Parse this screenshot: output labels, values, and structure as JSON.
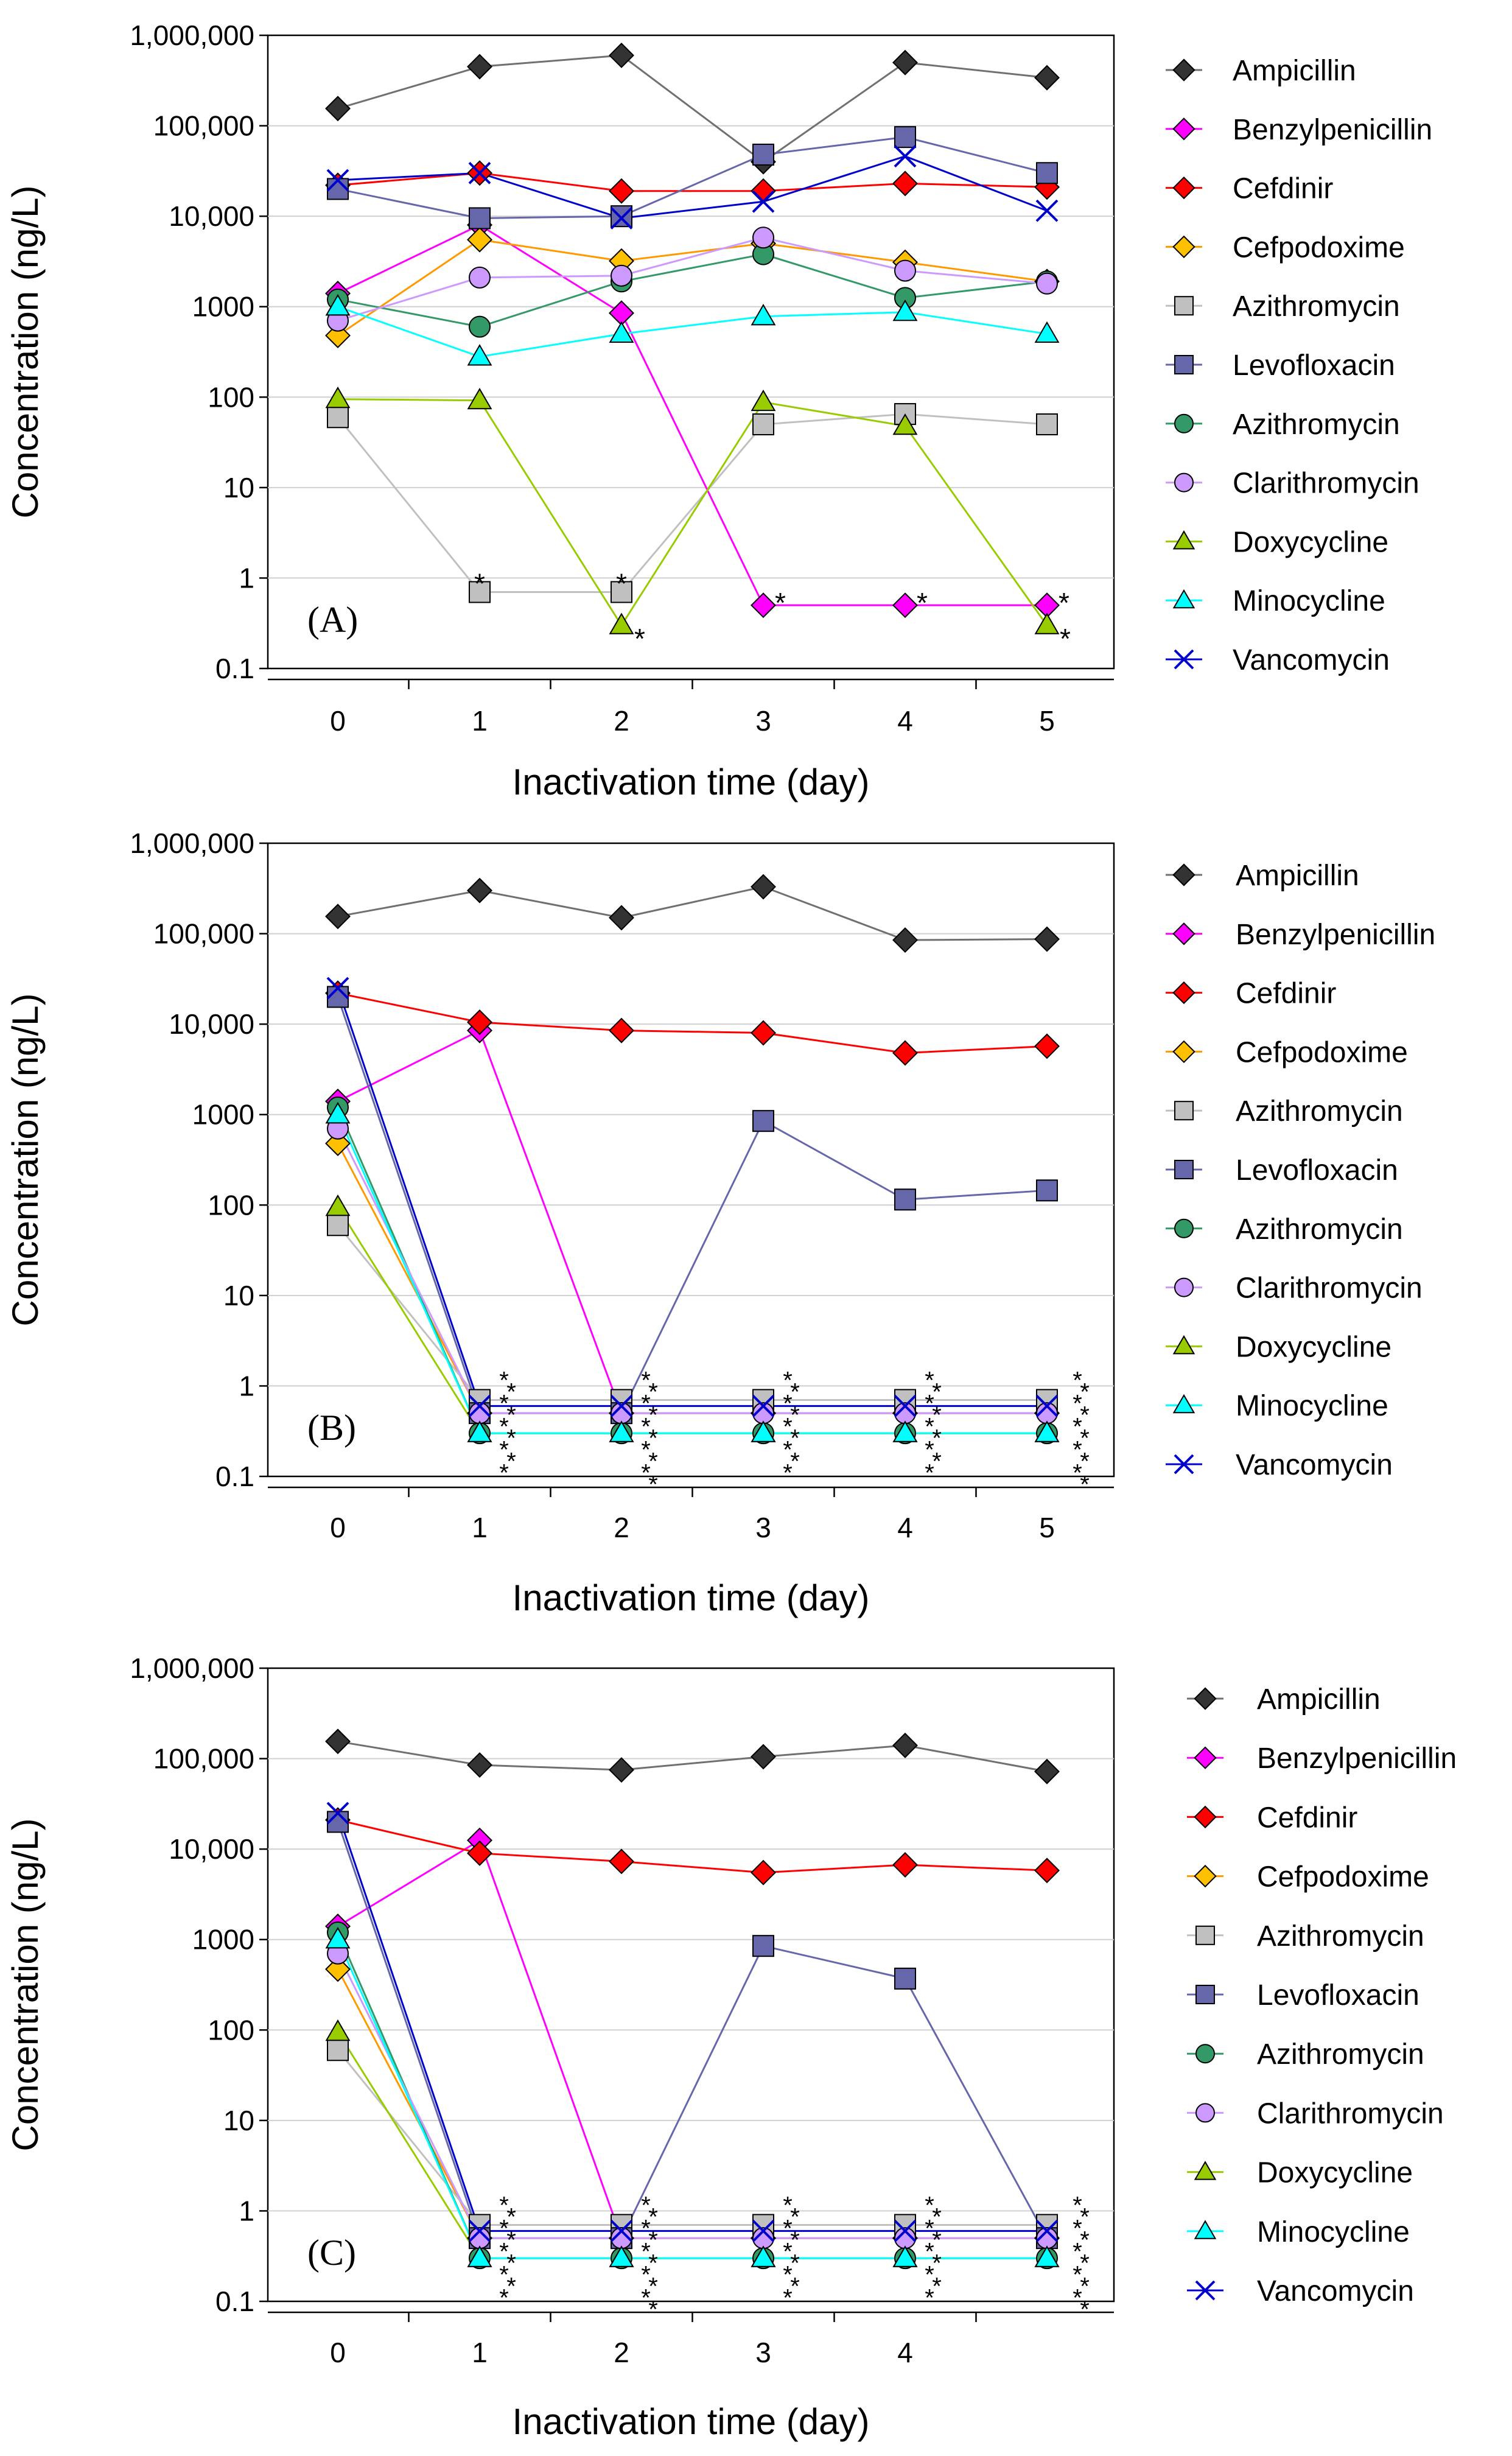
{
  "chart_data": [
    {
      "type": "line",
      "panel_label": "(A)",
      "xlabel": "Inactivation time (day)",
      "ylabel": "Concentration (ng/L)",
      "yscale": "log",
      "ylim": [
        0.1,
        1000000
      ],
      "xlim": [
        -0.5,
        5.5
      ],
      "x_ticks": [
        "0",
        "1",
        "2",
        "3",
        "4",
        "5"
      ],
      "y_ticks": [
        "0.1",
        "1",
        "10",
        "100",
        "1000",
        "10,000",
        "100,000",
        "1,000,000"
      ],
      "grid": "horizontal",
      "legend": "right",
      "series": [
        {
          "name": "Ampicillin",
          "x": [
            0,
            1,
            2,
            3,
            4,
            5
          ],
          "values": [
            155000,
            450000,
            600000,
            40000,
            500000,
            340000
          ]
        },
        {
          "name": "Benzylpenicillin",
          "x": [
            0,
            1,
            2,
            3,
            4,
            5
          ],
          "values": [
            1400,
            8000,
            850,
            0.5,
            0.5,
            0.5
          ]
        },
        {
          "name": "Cefdinir",
          "x": [
            0,
            1,
            2,
            3,
            4,
            5
          ],
          "values": [
            22000,
            30000,
            19000,
            19000,
            23000,
            21000
          ]
        },
        {
          "name": "Cefpodoxime",
          "x": [
            0,
            1,
            2,
            3,
            4,
            5
          ],
          "values": [
            480,
            5500,
            3200,
            5000,
            3100,
            1900
          ]
        },
        {
          "name": "Azithromycin",
          "x": [
            0,
            1,
            2,
            3,
            4,
            5
          ],
          "values": [
            60,
            0.7,
            0.7,
            50,
            65,
            50
          ]
        },
        {
          "name": "Levofloxacin",
          "x": [
            0,
            1,
            2,
            3,
            4,
            5
          ],
          "values": [
            20000,
            9500,
            10000,
            48000,
            75000,
            30000
          ]
        },
        {
          "name": "Azithromycin",
          "x": [
            0,
            1,
            2,
            3,
            4,
            5
          ],
          "values": [
            1200,
            600,
            1900,
            3800,
            1250,
            1900
          ]
        },
        {
          "name": "Clarithromycin",
          "x": [
            0,
            1,
            2,
            3,
            4,
            5
          ],
          "values": [
            700,
            2100,
            2200,
            5800,
            2500,
            1800
          ]
        },
        {
          "name": "Doxycycline",
          "x": [
            0,
            1,
            2,
            3,
            4,
            5
          ],
          "values": [
            95,
            92,
            0.3,
            88,
            48,
            0.3
          ]
        },
        {
          "name": "Minocycline",
          "x": [
            0,
            1,
            2,
            3,
            4,
            5
          ],
          "values": [
            1000,
            280,
            500,
            780,
            870,
            500
          ]
        },
        {
          "name": "Vancomycin",
          "x": [
            0,
            1,
            2,
            3,
            4,
            5
          ],
          "values": [
            25000,
            30000,
            9500,
            14500,
            46000,
            11500
          ]
        }
      ],
      "annotations": [
        {
          "text": "*",
          "x": 1,
          "y": 0.7
        },
        {
          "text": "*",
          "x": 2,
          "y": 0.7
        },
        {
          "text": "*",
          "x": 2,
          "y": 0.3
        },
        {
          "text": "*",
          "x": 3,
          "y": 0.5
        },
        {
          "text": "*",
          "x": 4,
          "y": 0.5
        },
        {
          "text": "*",
          "x": 5,
          "y": 0.5
        },
        {
          "text": "*",
          "x": 5,
          "y": 0.3
        }
      ],
      "star_columns": []
    },
    {
      "type": "line",
      "panel_label": "(B)",
      "xlabel": "Inactivation time (day)",
      "ylabel": "Concentration (ng/L)",
      "yscale": "log",
      "ylim": [
        0.1,
        1000000
      ],
      "xlim": [
        -0.5,
        5.5
      ],
      "x_ticks": [
        "0",
        "1",
        "2",
        "3",
        "4",
        "5"
      ],
      "y_ticks": [
        "0.1",
        "1",
        "10",
        "100",
        "1000",
        "10,000",
        "100,000",
        "1,000,000"
      ],
      "grid": "horizontal",
      "legend": "right",
      "series": [
        {
          "name": "Ampicillin",
          "x": [
            0,
            1,
            2,
            3,
            4,
            5
          ],
          "values": [
            155000,
            300000,
            150000,
            330000,
            85000,
            87000
          ]
        },
        {
          "name": "Benzylpenicillin",
          "x": [
            0,
            1,
            2,
            3,
            4,
            5
          ],
          "values": [
            1400,
            8500,
            0.5,
            0.5,
            0.5,
            0.5
          ]
        },
        {
          "name": "Cefdinir",
          "x": [
            0,
            1,
            2,
            3,
            4,
            5
          ],
          "values": [
            22000,
            10500,
            8500,
            8000,
            4800,
            5700
          ]
        },
        {
          "name": "Cefpodoxime",
          "x": [
            0,
            1,
            2,
            3,
            4,
            5
          ],
          "values": [
            480,
            0.5,
            0.5,
            0.5,
            0.5,
            0.5
          ]
        },
        {
          "name": "Azithromycin",
          "x": [
            0,
            1,
            2,
            3,
            4,
            5
          ],
          "values": [
            60,
            0.7,
            0.7,
            0.7,
            0.7,
            0.7
          ]
        },
        {
          "name": "Levofloxacin",
          "x": [
            0,
            1,
            2,
            3,
            4,
            5
          ],
          "values": [
            20000,
            0.5,
            0.5,
            850,
            115,
            145
          ]
        },
        {
          "name": "Azithromycin",
          "x": [
            0,
            1,
            2,
            3,
            4,
            5
          ],
          "values": [
            1200,
            0.3,
            0.3,
            0.3,
            0.3,
            0.3
          ]
        },
        {
          "name": "Clarithromycin",
          "x": [
            0,
            1,
            2,
            3,
            4,
            5
          ],
          "values": [
            700,
            0.5,
            0.5,
            0.5,
            0.5,
            0.5
          ]
        },
        {
          "name": "Doxycycline",
          "x": [
            0,
            1,
            2,
            3,
            4,
            5
          ],
          "values": [
            95,
            0.3,
            0.3,
            0.3,
            0.3,
            0.3
          ]
        },
        {
          "name": "Minocycline",
          "x": [
            0,
            1,
            2,
            3,
            4,
            5
          ],
          "values": [
            1000,
            0.3,
            0.3,
            0.3,
            0.3,
            0.3
          ]
        },
        {
          "name": "Vancomycin",
          "x": [
            0,
            1,
            2,
            3,
            4,
            5
          ],
          "values": [
            25000,
            0.6,
            0.6,
            0.6,
            0.6,
            0.6
          ]
        }
      ],
      "annotations": [],
      "star_columns": [
        {
          "x": 1,
          "text": "*",
          "count": 9
        },
        {
          "x": 2,
          "text": "*",
          "count": 10
        },
        {
          "x": 3,
          "text": "*",
          "count": 9
        },
        {
          "x": 4,
          "text": "*",
          "count": 9
        },
        {
          "x": 5,
          "text": "*",
          "count": 10
        }
      ]
    },
    {
      "type": "line",
      "panel_label": "(C)",
      "xlabel": "Inactivation time (day)",
      "ylabel": "Concentration (ng/L)",
      "yscale": "log",
      "ylim": [
        0.1,
        1000000
      ],
      "xlim": [
        -0.5,
        5.5
      ],
      "x_ticks": [
        "0",
        "1",
        "2",
        "3",
        "4",
        ""
      ],
      "y_ticks": [
        "0.1",
        "1",
        "10",
        "100",
        "1000",
        "10,000",
        "100,000",
        "1,000,000"
      ],
      "grid": "horizontal",
      "legend": "right",
      "series": [
        {
          "name": "Ampicillin",
          "x": [
            0,
            1,
            2,
            3,
            4,
            5
          ],
          "values": [
            155000,
            85000,
            75000,
            105000,
            140000,
            72000
          ]
        },
        {
          "name": "Benzylpenicillin",
          "x": [
            0,
            1,
            2,
            3,
            4,
            5
          ],
          "values": [
            1400,
            12500,
            0.5,
            0.5,
            0.5,
            0.5
          ]
        },
        {
          "name": "Cefdinir",
          "x": [
            0,
            1,
            2,
            3,
            4,
            5
          ],
          "values": [
            21000,
            9000,
            7300,
            5500,
            6700,
            5800
          ]
        },
        {
          "name": "Cefpodoxime",
          "x": [
            0,
            1,
            2,
            3,
            4,
            5
          ],
          "values": [
            470,
            0.5,
            0.5,
            0.5,
            0.5,
            0.5
          ]
        },
        {
          "name": "Azithromycin",
          "x": [
            0,
            1,
            2,
            3,
            4,
            5
          ],
          "values": [
            60,
            0.7,
            0.7,
            0.7,
            0.7,
            0.7
          ]
        },
        {
          "name": "Levofloxacin",
          "x": [
            0,
            1,
            2,
            3,
            4,
            5
          ],
          "values": [
            20000,
            0.5,
            0.5,
            850,
            370,
            0.5
          ]
        },
        {
          "name": "Azithromycin",
          "x": [
            0,
            1,
            2,
            3,
            4,
            5
          ],
          "values": [
            1200,
            0.3,
            0.3,
            0.3,
            0.3,
            0.3
          ]
        },
        {
          "name": "Clarithromycin",
          "x": [
            0,
            1,
            2,
            3,
            4,
            5
          ],
          "values": [
            700,
            0.5,
            0.5,
            0.5,
            0.5,
            0.5
          ]
        },
        {
          "name": "Doxycycline",
          "x": [
            0,
            1,
            2,
            3,
            4,
            5
          ],
          "values": [
            95,
            0.3,
            0.3,
            0.3,
            0.3,
            0.3
          ]
        },
        {
          "name": "Minocycline",
          "x": [
            0,
            1,
            2,
            3,
            4,
            5
          ],
          "values": [
            1000,
            0.3,
            0.3,
            0.3,
            0.3,
            0.3
          ]
        },
        {
          "name": "Vancomycin",
          "x": [
            0,
            1,
            2,
            3,
            4,
            5
          ],
          "values": [
            25000,
            0.6,
            0.6,
            0.6,
            0.6,
            0.6
          ]
        }
      ],
      "annotations": [],
      "star_columns": [
        {
          "x": 1,
          "text": "*",
          "count": 9
        },
        {
          "x": 2,
          "text": "*",
          "count": 10
        },
        {
          "x": 3,
          "text": "*",
          "count": 9
        },
        {
          "x": 4,
          "text": "*",
          "count": 9
        },
        {
          "x": 5,
          "text": "*",
          "count": 10
        }
      ]
    }
  ],
  "series_styles": [
    {
      "marker": "diamond",
      "line": "#707070",
      "fill": "#333333"
    },
    {
      "marker": "diamond",
      "line": "#ff00ff",
      "fill": "#ff00ff"
    },
    {
      "marker": "diamond",
      "line": "#ff0000",
      "fill": "#ff0000"
    },
    {
      "marker": "diamond",
      "line": "#ff9900",
      "fill": "#ffc000"
    },
    {
      "marker": "square",
      "line": "#c0c0c0",
      "fill": "#c0c0c0"
    },
    {
      "marker": "square",
      "line": "#6666aa",
      "fill": "#6666aa"
    },
    {
      "marker": "circle",
      "line": "#339966",
      "fill": "#339966"
    },
    {
      "marker": "circle",
      "line": "#cc99ff",
      "fill": "#cc99ff"
    },
    {
      "marker": "triangle",
      "line": "#99cc00",
      "fill": "#99cc00"
    },
    {
      "marker": "triangle",
      "line": "#00ffff",
      "fill": "#00ffff"
    },
    {
      "marker": "x",
      "line": "#0000cc",
      "fill": "#0000cc"
    }
  ]
}
